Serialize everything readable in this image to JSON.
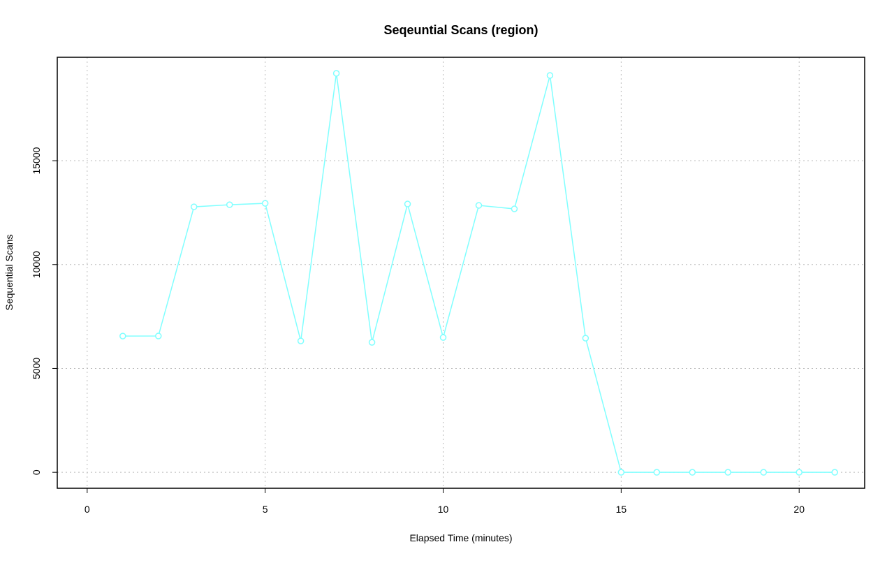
{
  "chart_data": {
    "type": "line",
    "title": "Seqeuntial Scans (region)",
    "x_label": "Elapsed Time (minutes)",
    "y_label": "Sequential Scans",
    "x": [
      1,
      2,
      3,
      4,
      5,
      6,
      7,
      8,
      9,
      10,
      11,
      12,
      13,
      14,
      15,
      16,
      17,
      18,
      19,
      20,
      21
    ],
    "series": [
      {
        "name": "Sequential Scans",
        "color": "#80ffff",
        "values": [
          6558,
          6560,
          12780,
          12881,
          12948,
          6323,
          19204,
          6256,
          12915,
          6491,
          12848,
          12680,
          19103,
          6457,
          0,
          0,
          0,
          0,
          0,
          0,
          0
        ]
      }
    ],
    "xlim": [
      -0.84,
      21.84
    ],
    "ylim": [
      -768,
      19978
    ],
    "xticks": [
      0,
      5,
      10,
      15,
      20
    ],
    "yticks": [
      0,
      5000,
      10000,
      15000
    ],
    "grid": true
  }
}
